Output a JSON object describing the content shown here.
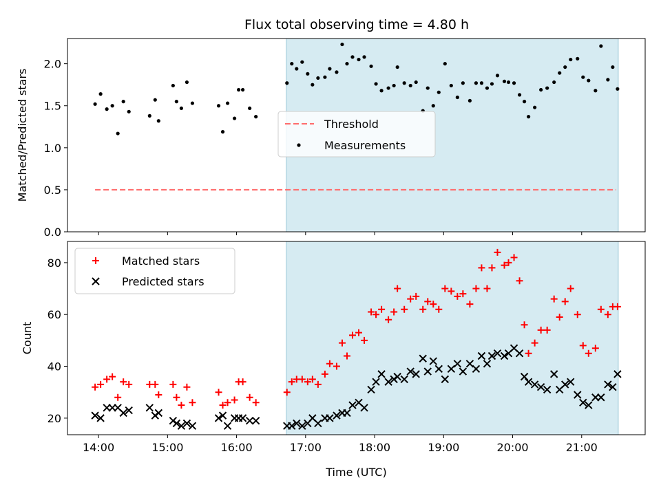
{
  "title": "Flux total observing time = 4.80 h",
  "chart_data": [
    {
      "type": "scatter",
      "name": "ratio-panel",
      "ylabel": "Matched/Predicted stars",
      "ylim": [
        0,
        2.3
      ],
      "xlim": [
        13.55,
        21.92
      ],
      "yticks": [
        0.0,
        0.5,
        1.0,
        1.5,
        2.0
      ],
      "ytick_labels": [
        "0.0",
        "0.5",
        "1.0",
        "1.5",
        "2.0"
      ],
      "shaded_region": [
        16.72,
        21.53
      ],
      "threshold": {
        "name": "Threshold",
        "value": 0.5,
        "x_start": 13.95,
        "x_end": 21.5,
        "color": "#ff6b6b"
      },
      "legend": {
        "placement": "center",
        "entries": [
          "Threshold",
          "Measurements"
        ]
      },
      "series": [
        {
          "name": "Measurements",
          "color": "#000000",
          "points": [
            [
              13.95,
              1.52
            ],
            [
              14.03,
              1.64
            ],
            [
              14.12,
              1.46
            ],
            [
              14.2,
              1.5
            ],
            [
              14.28,
              1.17
            ],
            [
              14.36,
              1.55
            ],
            [
              14.44,
              1.43
            ],
            [
              14.74,
              1.38
            ],
            [
              14.82,
              1.57
            ],
            [
              14.87,
              1.32
            ],
            [
              15.08,
              1.74
            ],
            [
              15.13,
              1.55
            ],
            [
              15.2,
              1.47
            ],
            [
              15.28,
              1.78
            ],
            [
              15.36,
              1.53
            ],
            [
              15.74,
              1.5
            ],
            [
              15.8,
              1.19
            ],
            [
              15.87,
              1.53
            ],
            [
              15.97,
              1.35
            ],
            [
              16.03,
              1.69
            ],
            [
              16.09,
              1.69
            ],
            [
              16.19,
              1.47
            ],
            [
              16.28,
              1.37
            ],
            [
              16.73,
              1.77
            ],
            [
              16.8,
              2.0
            ],
            [
              16.87,
              1.94
            ],
            [
              16.95,
              2.02
            ],
            [
              17.03,
              1.88
            ],
            [
              17.1,
              1.75
            ],
            [
              17.18,
              1.83
            ],
            [
              17.28,
              1.84
            ],
            [
              17.35,
              1.94
            ],
            [
              17.45,
              1.9
            ],
            [
              17.53,
              2.23
            ],
            [
              17.6,
              2.0
            ],
            [
              17.68,
              2.08
            ],
            [
              17.77,
              2.05
            ],
            [
              17.85,
              2.08
            ],
            [
              17.95,
              1.97
            ],
            [
              18.02,
              1.76
            ],
            [
              18.1,
              1.68
            ],
            [
              18.2,
              1.71
            ],
            [
              18.28,
              1.74
            ],
            [
              18.33,
              1.96
            ],
            [
              18.43,
              1.77
            ],
            [
              18.52,
              1.74
            ],
            [
              18.6,
              1.78
            ],
            [
              18.7,
              1.44
            ],
            [
              18.77,
              1.71
            ],
            [
              18.85,
              1.5
            ],
            [
              18.93,
              1.66
            ],
            [
              19.02,
              2.0
            ],
            [
              19.11,
              1.74
            ],
            [
              19.2,
              1.6
            ],
            [
              19.28,
              1.77
            ],
            [
              19.38,
              1.56
            ],
            [
              19.47,
              1.77
            ],
            [
              19.55,
              1.77
            ],
            [
              19.63,
              1.71
            ],
            [
              19.7,
              1.76
            ],
            [
              19.78,
              1.86
            ],
            [
              19.88,
              1.79
            ],
            [
              19.94,
              1.78
            ],
            [
              20.02,
              1.77
            ],
            [
              20.1,
              1.63
            ],
            [
              20.17,
              1.55
            ],
            [
              20.23,
              1.37
            ],
            [
              20.32,
              1.48
            ],
            [
              20.41,
              1.69
            ],
            [
              20.5,
              1.71
            ],
            [
              20.6,
              1.78
            ],
            [
              20.68,
              1.89
            ],
            [
              20.76,
              1.96
            ],
            [
              20.84,
              2.05
            ],
            [
              20.94,
              2.06
            ],
            [
              21.02,
              1.84
            ],
            [
              21.1,
              1.8
            ],
            [
              21.2,
              1.68
            ],
            [
              21.28,
              2.21
            ],
            [
              21.38,
              1.81
            ],
            [
              21.45,
              1.96
            ],
            [
              21.52,
              1.7
            ]
          ]
        }
      ]
    },
    {
      "type": "scatter",
      "name": "count-panel",
      "ylabel": "Count",
      "xlabel": "Time (UTC)",
      "ylim": [
        13.6,
        88.2
      ],
      "xlim": [
        13.55,
        21.92
      ],
      "yticks": [
        20,
        40,
        60,
        80
      ],
      "ytick_labels": [
        "20",
        "40",
        "60",
        "80"
      ],
      "xticks": [
        14,
        15,
        16,
        17,
        18,
        19,
        20,
        21
      ],
      "xtick_labels": [
        "14:00",
        "15:00",
        "16:00",
        "17:00",
        "18:00",
        "19:00",
        "20:00",
        "21:00"
      ],
      "shaded_region": [
        16.72,
        21.53
      ],
      "legend": {
        "placement": "top-left",
        "entries": [
          "Matched stars",
          "Predicted stars"
        ]
      },
      "series": [
        {
          "name": "Matched stars",
          "marker": "plus",
          "color": "#ff0000",
          "points": [
            [
              13.95,
              32
            ],
            [
              14.03,
              33
            ],
            [
              14.12,
              35
            ],
            [
              14.2,
              36
            ],
            [
              14.28,
              28
            ],
            [
              14.36,
              34
            ],
            [
              14.44,
              33
            ],
            [
              14.74,
              33
            ],
            [
              14.82,
              33
            ],
            [
              14.87,
              29
            ],
            [
              15.08,
              33
            ],
            [
              15.13,
              28
            ],
            [
              15.2,
              25
            ],
            [
              15.28,
              32
            ],
            [
              15.36,
              26
            ],
            [
              15.74,
              30
            ],
            [
              15.8,
              25
            ],
            [
              15.87,
              26
            ],
            [
              15.97,
              27
            ],
            [
              16.03,
              34
            ],
            [
              16.09,
              34
            ],
            [
              16.19,
              28
            ],
            [
              16.28,
              26
            ],
            [
              16.73,
              30
            ],
            [
              16.8,
              34
            ],
            [
              16.87,
              35
            ],
            [
              16.95,
              35
            ],
            [
              17.03,
              34
            ],
            [
              17.1,
              35
            ],
            [
              17.18,
              33
            ],
            [
              17.28,
              37
            ],
            [
              17.35,
              41
            ],
            [
              17.45,
              40
            ],
            [
              17.53,
              49
            ],
            [
              17.6,
              44
            ],
            [
              17.68,
              52
            ],
            [
              17.77,
              53
            ],
            [
              17.85,
              50
            ],
            [
              17.95,
              61
            ],
            [
              18.02,
              60
            ],
            [
              18.1,
              62
            ],
            [
              18.2,
              58
            ],
            [
              18.28,
              61
            ],
            [
              18.33,
              70
            ],
            [
              18.43,
              62
            ],
            [
              18.52,
              66
            ],
            [
              18.6,
              67
            ],
            [
              18.7,
              62
            ],
            [
              18.77,
              65
            ],
            [
              18.85,
              64
            ],
            [
              18.93,
              62
            ],
            [
              19.02,
              70
            ],
            [
              19.11,
              69
            ],
            [
              19.2,
              67
            ],
            [
              19.28,
              68
            ],
            [
              19.38,
              64
            ],
            [
              19.47,
              70
            ],
            [
              19.55,
              78
            ],
            [
              19.63,
              70
            ],
            [
              19.7,
              78
            ],
            [
              19.78,
              84
            ],
            [
              19.88,
              79
            ],
            [
              19.94,
              80
            ],
            [
              20.02,
              82
            ],
            [
              20.1,
              73
            ],
            [
              20.17,
              56
            ],
            [
              20.23,
              45
            ],
            [
              20.32,
              49
            ],
            [
              20.41,
              54
            ],
            [
              20.5,
              54
            ],
            [
              20.6,
              66
            ],
            [
              20.68,
              59
            ],
            [
              20.76,
              65
            ],
            [
              20.84,
              70
            ],
            [
              20.94,
              60
            ],
            [
              21.02,
              48
            ],
            [
              21.1,
              45
            ],
            [
              21.2,
              47
            ],
            [
              21.28,
              62
            ],
            [
              21.38,
              60
            ],
            [
              21.45,
              63
            ],
            [
              21.52,
              63
            ]
          ]
        },
        {
          "name": "Predicted stars",
          "marker": "x",
          "color": "#000000",
          "points": [
            [
              13.95,
              21
            ],
            [
              14.03,
              20
            ],
            [
              14.12,
              24
            ],
            [
              14.2,
              24
            ],
            [
              14.28,
              24
            ],
            [
              14.36,
              22
            ],
            [
              14.44,
              23
            ],
            [
              14.74,
              24
            ],
            [
              14.82,
              21
            ],
            [
              14.87,
              22
            ],
            [
              15.08,
              19
            ],
            [
              15.13,
              18
            ],
            [
              15.2,
              17
            ],
            [
              15.28,
              18
            ],
            [
              15.36,
              17
            ],
            [
              15.74,
              20
            ],
            [
              15.8,
              21
            ],
            [
              15.87,
              17
            ],
            [
              15.97,
              20
            ],
            [
              16.03,
              20
            ],
            [
              16.09,
              20
            ],
            [
              16.19,
              19
            ],
            [
              16.28,
              19
            ],
            [
              16.73,
              17
            ],
            [
              16.8,
              17
            ],
            [
              16.87,
              18
            ],
            [
              16.95,
              17
            ],
            [
              17.03,
              18
            ],
            [
              17.1,
              20
            ],
            [
              17.18,
              18
            ],
            [
              17.28,
              20
            ],
            [
              17.35,
              20
            ],
            [
              17.45,
              21
            ],
            [
              17.53,
              22
            ],
            [
              17.6,
              22
            ],
            [
              17.68,
              25
            ],
            [
              17.77,
              26
            ],
            [
              17.85,
              24
            ],
            [
              17.95,
              31
            ],
            [
              18.02,
              34
            ],
            [
              18.1,
              37
            ],
            [
              18.2,
              34
            ],
            [
              18.28,
              35
            ],
            [
              18.33,
              36
            ],
            [
              18.43,
              35
            ],
            [
              18.52,
              38
            ],
            [
              18.6,
              37
            ],
            [
              18.7,
              43
            ],
            [
              18.77,
              38
            ],
            [
              18.85,
              42
            ],
            [
              18.93,
              39
            ],
            [
              19.02,
              35
            ],
            [
              19.11,
              39
            ],
            [
              19.2,
              41
            ],
            [
              19.28,
              38
            ],
            [
              19.38,
              41
            ],
            [
              19.47,
              39
            ],
            [
              19.55,
              44
            ],
            [
              19.63,
              41
            ],
            [
              19.7,
              44
            ],
            [
              19.78,
              45
            ],
            [
              19.88,
              44
            ],
            [
              19.94,
              45
            ],
            [
              20.02,
              47
            ],
            [
              20.1,
              45
            ],
            [
              20.17,
              36
            ],
            [
              20.23,
              34
            ],
            [
              20.32,
              33
            ],
            [
              20.41,
              32
            ],
            [
              20.5,
              31
            ],
            [
              20.6,
              37
            ],
            [
              20.68,
              31
            ],
            [
              20.76,
              33
            ],
            [
              20.84,
              34
            ],
            [
              20.94,
              29
            ],
            [
              21.02,
              26
            ],
            [
              21.1,
              25
            ],
            [
              21.2,
              28
            ],
            [
              21.28,
              28
            ],
            [
              21.38,
              33
            ],
            [
              21.45,
              32
            ],
            [
              21.52,
              37
            ]
          ]
        }
      ]
    }
  ]
}
